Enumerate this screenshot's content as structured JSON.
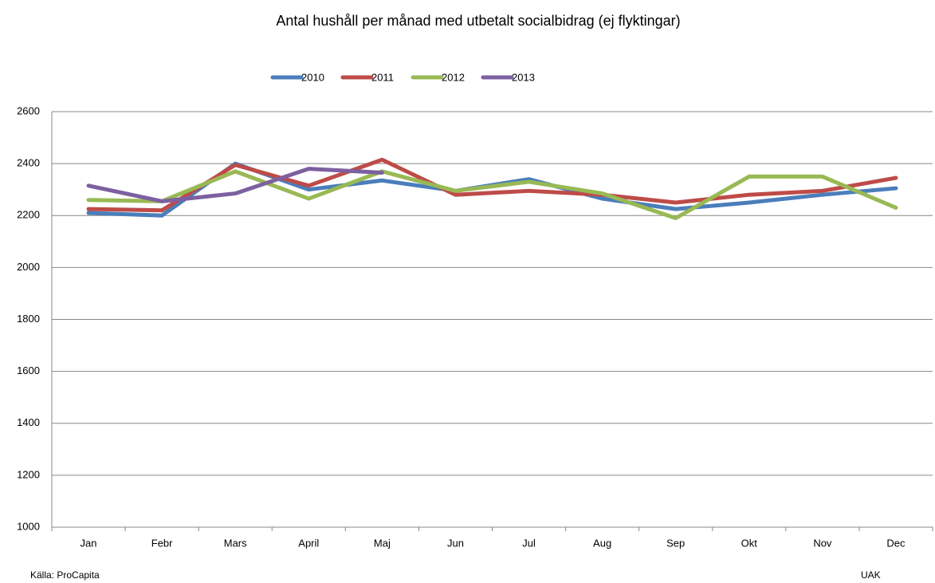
{
  "chart_data": {
    "type": "line",
    "title": "Antal hushåll per månad med utbetalt socialbidrag (ej flyktingar)",
    "categories": [
      "Jan",
      "Febr",
      "Mars",
      "April",
      "Maj",
      "Jun",
      "Jul",
      "Aug",
      "Sep",
      "Okt",
      "Nov",
      "Dec"
    ],
    "series": [
      {
        "name": "2010",
        "color": "#4a7ebb",
        "values": [
          2210,
          2200,
          2400,
          2300,
          2335,
          2295,
          2340,
          2265,
          2225,
          2250,
          2280,
          2305
        ]
      },
      {
        "name": "2011",
        "color": "#be4b48",
        "values": [
          2225,
          2220,
          2395,
          2315,
          2415,
          2280,
          2295,
          2280,
          2250,
          2280,
          2295,
          2345
        ]
      },
      {
        "name": "2012",
        "color": "#98b954",
        "values": [
          2260,
          2255,
          2370,
          2265,
          2370,
          2295,
          2330,
          2285,
          2190,
          2350,
          2350,
          2230
        ]
      },
      {
        "name": "2013",
        "color": "#7d60a0",
        "values": [
          2315,
          2255,
          2285,
          2380,
          2365,
          null,
          null,
          null,
          null,
          null,
          null,
          null
        ]
      }
    ],
    "ylim": [
      1000,
      2600
    ],
    "yticks": [
      1000,
      1200,
      1400,
      1600,
      1800,
      2000,
      2200,
      2400,
      2600
    ],
    "grid": true,
    "legend": "top",
    "source": "Källa: ProCapita",
    "credit": "UAK"
  }
}
